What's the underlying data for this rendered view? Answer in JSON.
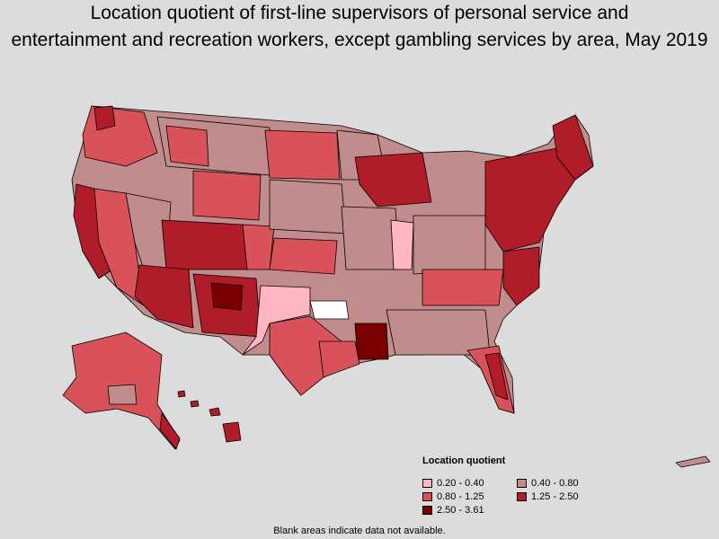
{
  "title_line1": "Location quotient of first-line supervisors of personal service and",
  "title_line2": "entertainment and recreation workers, except gambling services by area, May 2019",
  "legend": {
    "title": "Location quotient",
    "items": [
      {
        "label": "0.20 - 0.40",
        "color": "#ffb6c1"
      },
      {
        "label": "0.40 - 0.80",
        "color": "#c08c8c"
      },
      {
        "label": "0.80 - 1.25",
        "color": "#d9525a"
      },
      {
        "label": "1.25 - 2.50",
        "color": "#b01c28"
      },
      {
        "label": "2.50 - 3.61",
        "color": "#7a0000"
      }
    ]
  },
  "footnote": "Blank areas indicate data not available."
}
